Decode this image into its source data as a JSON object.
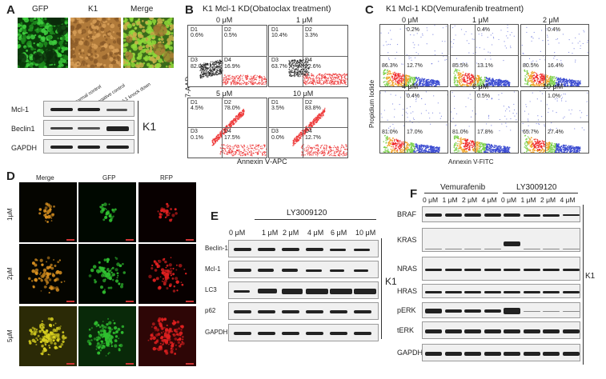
{
  "panel_a": {
    "letter": "A",
    "image_labels": [
      "GFP",
      "K1",
      "Merge"
    ],
    "lane_labels": [
      "Normal control",
      "Negative control",
      "Mcl-1 knock down"
    ],
    "proteins": [
      "Mcl-1",
      "Beclin1",
      "GAPDH"
    ],
    "cell_line": "K1"
  },
  "panel_b": {
    "letter": "B",
    "title": "K1 Mcl-1 KD(Obatoclax treatment)",
    "y_axis": "7-AAD",
    "x_axis": "Annexin Ⅴ-APC",
    "plots": [
      {
        "dose": "0 μM",
        "q1": "D1",
        "q2": "D2",
        "q3": "D3",
        "q4": "D4",
        "v1": "0.6%",
        "v2": "0.5%",
        "v3": "82.0%",
        "v4": "16.9%"
      },
      {
        "dose": "1 μM",
        "q1": "D1",
        "q2": "D2",
        "q3": "D3",
        "q4": "D4",
        "v1": "10.4%",
        "v2": "3.3%",
        "v3": "63.7%",
        "v4": "22.6%"
      },
      {
        "dose": "5 μM",
        "q1": "D1",
        "q2": "D2",
        "q3": "D3",
        "q4": "D4",
        "v1": "4.5%",
        "v2": "78.0%",
        "v3": "0.1%",
        "v4": "17.5%"
      },
      {
        "dose": "10 μM",
        "q1": "D1",
        "q2": "D2",
        "q3": "D3",
        "q4": "D4",
        "v1": "3.5%",
        "v2": "83.8%",
        "v3": "0.0%",
        "v4": "12.7%"
      }
    ]
  },
  "panel_c": {
    "letter": "C",
    "title": "K1 Mcl-1 KD(Vemurafenib treatment)",
    "y_axis": "Propidium Iodide",
    "x_axis": "Annexin V-FITC",
    "plots": [
      {
        "dose": "0 μM",
        "v_top": "0.2%",
        "v_ll": "86.3%",
        "v_lr": "12.7%"
      },
      {
        "dose": "1 μM",
        "v_top": "0.4%",
        "v_ll": "85.5%",
        "v_lr": "13.1%"
      },
      {
        "dose": "2 μM",
        "v_top": "0.4%",
        "v_ll": "80.5%",
        "v_lr": "16.4%"
      },
      {
        "dose": "4 μM",
        "v_top": "0.4%",
        "v_ll": "81.0%",
        "v_lr": "17.0%"
      },
      {
        "dose": "6 μM",
        "v_top": "0.5%",
        "v_ll": "81.0%",
        "v_lr": "17.8%"
      },
      {
        "dose": "10 μM",
        "v_top": "1.0%",
        "v_ll": "65.7%",
        "v_lr": "27.4%"
      }
    ]
  },
  "panel_d": {
    "letter": "D",
    "columns": [
      "Merge",
      "GFP",
      "RFP"
    ],
    "rows": [
      "1μM",
      "2μM",
      "5μM"
    ]
  },
  "panel_e": {
    "letter": "E",
    "drug": "LY3009120",
    "doses": [
      "0 μM",
      "1 μM",
      "2 μM",
      "4 μM",
      "6 μM",
      "10 μM"
    ],
    "proteins": [
      "Beclin-1",
      "Mcl-1",
      "LC3",
      "p62",
      "GAPDH"
    ],
    "cell_line": "K1"
  },
  "panel_f": {
    "letter": "F",
    "drug1": "Vemurafenib",
    "drug2": "LY3009120",
    "doses": [
      "0 μM",
      "1 μM",
      "2 μM",
      "4 μM",
      "0 μM",
      "1 μM",
      "2 μM",
      "4 μM"
    ],
    "proteins": [
      "BRAF",
      "KRAS",
      "NRAS",
      "HRAS",
      "pERK",
      "tERK",
      "GAPDH"
    ],
    "cell_line": "K1"
  }
}
